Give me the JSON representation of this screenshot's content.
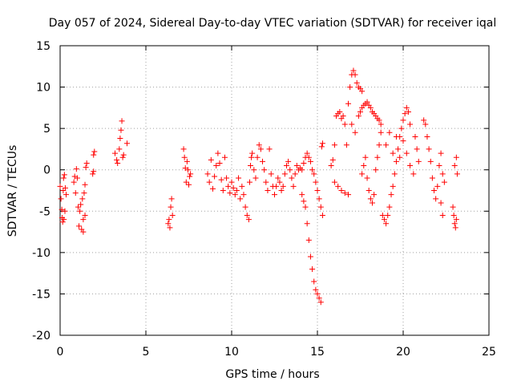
{
  "chart_data": {
    "type": "scatter",
    "title": "Day 057 of 2024, Sidereal Day-to-day VTEC variation (SDTVAR) for receiver iqal",
    "xlabel": "GPS time / hours",
    "ylabel": "SDTVAR / TECUs",
    "xlim": [
      0,
      25
    ],
    "ylim": [
      -20,
      15
    ],
    "x_ticks": [
      0,
      5,
      10,
      15,
      20,
      25
    ],
    "x_tick_labels": [
      "0",
      "5",
      "10",
      "15",
      "20",
      "25"
    ],
    "y_ticks": [
      -20,
      -15,
      -10,
      -5,
      0,
      5,
      10,
      15
    ],
    "y_tick_labels": [
      "-20",
      "-15",
      "-10",
      "-5",
      "0",
      "5",
      "10",
      "15"
    ],
    "grid": true,
    "marker": "+",
    "marker_color": "#ff0000",
    "series": [
      {
        "name": "SDTVAR",
        "points": [
          [
            0.0,
            -2.0
          ],
          [
            0.05,
            -3.5
          ],
          [
            0.1,
            -4.8
          ],
          [
            0.12,
            -5.8
          ],
          [
            0.15,
            -6.3
          ],
          [
            0.18,
            -2.5
          ],
          [
            0.2,
            -1.0
          ],
          [
            0.25,
            -0.6
          ],
          [
            0.3,
            -2.2
          ],
          [
            0.35,
            -3.0
          ],
          [
            0.28,
            -5.0
          ],
          [
            0.22,
            -6.0
          ],
          [
            0.8,
            -1.5
          ],
          [
            0.85,
            -0.8
          ],
          [
            0.9,
            -2.8
          ],
          [
            0.95,
            0.1
          ],
          [
            1.0,
            -1.0
          ],
          [
            1.05,
            -4.5
          ],
          [
            1.1,
            -6.8
          ],
          [
            1.15,
            -5.0
          ],
          [
            1.2,
            -4.2
          ],
          [
            1.25,
            -7.2
          ],
          [
            1.3,
            -3.5
          ],
          [
            1.35,
            -6.0
          ],
          [
            1.4,
            -2.8
          ],
          [
            1.45,
            -1.8
          ],
          [
            1.5,
            0.3
          ],
          [
            1.55,
            0.8
          ],
          [
            1.45,
            -5.5
          ],
          [
            1.35,
            -7.5
          ],
          [
            1.9,
            -0.5
          ],
          [
            1.95,
            -0.2
          ],
          [
            2.0,
            2.2
          ],
          [
            1.95,
            1.8
          ],
          [
            3.2,
            2.0
          ],
          [
            3.3,
            1.2
          ],
          [
            3.35,
            0.8
          ],
          [
            3.45,
            2.5
          ],
          [
            3.5,
            3.8
          ],
          [
            3.55,
            4.8
          ],
          [
            3.6,
            5.9
          ],
          [
            3.65,
            1.5
          ],
          [
            3.7,
            1.8
          ],
          [
            3.9,
            3.2
          ],
          [
            6.3,
            -6.5
          ],
          [
            6.35,
            -6.0
          ],
          [
            6.4,
            -7.0
          ],
          [
            6.45,
            -4.5
          ],
          [
            6.5,
            -3.5
          ],
          [
            6.55,
            -5.5
          ],
          [
            7.2,
            2.5
          ],
          [
            7.25,
            1.5
          ],
          [
            7.3,
            0.2
          ],
          [
            7.35,
            -1.5
          ],
          [
            7.4,
            1.0
          ],
          [
            7.45,
            0.0
          ],
          [
            7.5,
            -1.8
          ],
          [
            7.55,
            -0.8
          ],
          [
            7.6,
            -0.5
          ],
          [
            8.6,
            -0.5
          ],
          [
            8.7,
            -1.5
          ],
          [
            8.8,
            1.2
          ],
          [
            8.9,
            -2.3
          ],
          [
            9.0,
            -0.8
          ],
          [
            9.1,
            0.5
          ],
          [
            9.2,
            2.0
          ],
          [
            9.3,
            0.8
          ],
          [
            9.4,
            -1.2
          ],
          [
            9.5,
            -2.5
          ],
          [
            9.6,
            1.5
          ],
          [
            9.7,
            -1.0
          ],
          [
            9.8,
            -2.0
          ],
          [
            9.9,
            -2.8
          ],
          [
            10.0,
            -1.5
          ],
          [
            10.1,
            -2.2
          ],
          [
            10.2,
            -3.0
          ],
          [
            10.3,
            -2.5
          ],
          [
            10.4,
            -1.0
          ],
          [
            10.5,
            -3.5
          ],
          [
            10.6,
            -2.0
          ],
          [
            10.7,
            -3.0
          ],
          [
            10.8,
            -4.5
          ],
          [
            10.9,
            -5.5
          ],
          [
            11.0,
            -6.0
          ],
          [
            11.05,
            -1.5
          ],
          [
            11.1,
            0.5
          ],
          [
            11.15,
            1.5
          ],
          [
            11.2,
            2.0
          ],
          [
            11.3,
            0.0
          ],
          [
            11.4,
            -1.0
          ],
          [
            11.5,
            1.5
          ],
          [
            11.6,
            3.0
          ],
          [
            11.7,
            2.5
          ],
          [
            11.8,
            1.0
          ],
          [
            11.9,
            0.0
          ],
          [
            12.0,
            -1.5
          ],
          [
            12.1,
            -2.5
          ],
          [
            12.2,
            2.5
          ],
          [
            12.3,
            -0.5
          ],
          [
            12.4,
            -2.0
          ],
          [
            12.5,
            -3.0
          ],
          [
            12.6,
            -2.0
          ],
          [
            12.7,
            -1.0
          ],
          [
            12.8,
            -1.5
          ],
          [
            12.9,
            -2.5
          ],
          [
            13.0,
            -2.0
          ],
          [
            13.1,
            -0.5
          ],
          [
            13.2,
            0.5
          ],
          [
            13.3,
            1.0
          ],
          [
            13.4,
            0.0
          ],
          [
            13.5,
            -1.0
          ],
          [
            13.6,
            -2.0
          ],
          [
            13.7,
            -0.5
          ],
          [
            13.8,
            0.5
          ],
          [
            13.9,
            0.0
          ],
          [
            14.0,
            0.2
          ],
          [
            14.1,
            0.0
          ],
          [
            14.2,
            0.8
          ],
          [
            14.3,
            1.5
          ],
          [
            14.4,
            2.0
          ],
          [
            14.5,
            1.5
          ],
          [
            14.6,
            1.0
          ],
          [
            14.7,
            0.0
          ],
          [
            14.8,
            -0.5
          ],
          [
            14.9,
            -1.5
          ],
          [
            15.0,
            -2.5
          ],
          [
            15.1,
            -3.5
          ],
          [
            15.2,
            -4.5
          ],
          [
            15.3,
            -5.5
          ],
          [
            15.25,
            2.8
          ],
          [
            15.3,
            3.2
          ],
          [
            14.1,
            -3.0
          ],
          [
            14.2,
            -3.8
          ],
          [
            14.3,
            -4.5
          ],
          [
            14.4,
            -6.5
          ],
          [
            14.5,
            -8.5
          ],
          [
            14.6,
            -10.5
          ],
          [
            14.7,
            -12.0
          ],
          [
            14.8,
            -13.5
          ],
          [
            14.9,
            -14.5
          ],
          [
            15.0,
            -15.0
          ],
          [
            15.1,
            -15.5
          ],
          [
            15.2,
            -16.0
          ],
          [
            15.8,
            0.5
          ],
          [
            15.9,
            1.2
          ],
          [
            16.0,
            3.0
          ],
          [
            16.1,
            6.5
          ],
          [
            16.2,
            6.8
          ],
          [
            16.3,
            7.0
          ],
          [
            16.4,
            6.2
          ],
          [
            16.5,
            6.5
          ],
          [
            16.6,
            5.5
          ],
          [
            16.0,
            -1.5
          ],
          [
            16.2,
            -2.0
          ],
          [
            16.4,
            -2.5
          ],
          [
            16.6,
            -2.8
          ],
          [
            16.8,
            -3.0
          ],
          [
            16.7,
            3.0
          ],
          [
            16.8,
            8.0
          ],
          [
            16.9,
            10.0
          ],
          [
            17.0,
            11.5
          ],
          [
            17.1,
            12.0
          ],
          [
            17.2,
            11.5
          ],
          [
            17.3,
            10.5
          ],
          [
            17.4,
            10.0
          ],
          [
            17.5,
            9.8
          ],
          [
            17.6,
            9.5
          ],
          [
            17.0,
            5.5
          ],
          [
            17.2,
            4.5
          ],
          [
            17.4,
            6.5
          ],
          [
            17.5,
            7.0
          ],
          [
            17.6,
            7.5
          ],
          [
            17.7,
            7.8
          ],
          [
            17.8,
            8.0
          ],
          [
            17.9,
            8.2
          ],
          [
            18.0,
            7.8
          ],
          [
            18.1,
            7.5
          ],
          [
            18.2,
            7.0
          ],
          [
            18.3,
            6.8
          ],
          [
            18.4,
            6.5
          ],
          [
            18.5,
            6.2
          ],
          [
            18.6,
            6.0
          ],
          [
            18.7,
            5.5
          ],
          [
            17.6,
            -0.5
          ],
          [
            17.7,
            0.5
          ],
          [
            17.8,
            1.5
          ],
          [
            17.9,
            -1.0
          ],
          [
            18.0,
            -2.5
          ],
          [
            18.1,
            -3.5
          ],
          [
            18.2,
            -4.0
          ],
          [
            18.3,
            -3.0
          ],
          [
            18.4,
            0.0
          ],
          [
            18.5,
            1.5
          ],
          [
            18.6,
            3.0
          ],
          [
            18.7,
            4.5
          ],
          [
            18.8,
            -5.5
          ],
          [
            18.9,
            -6.0
          ],
          [
            19.0,
            -6.5
          ],
          [
            19.1,
            -5.5
          ],
          [
            19.2,
            -4.5
          ],
          [
            19.3,
            -3.0
          ],
          [
            19.4,
            -2.0
          ],
          [
            19.5,
            -0.5
          ],
          [
            19.6,
            1.0
          ],
          [
            19.7,
            2.5
          ],
          [
            19.8,
            4.0
          ],
          [
            19.9,
            5.0
          ],
          [
            20.0,
            6.0
          ],
          [
            20.1,
            6.8
          ],
          [
            20.2,
            7.5
          ],
          [
            20.3,
            7.0
          ],
          [
            20.4,
            5.5
          ],
          [
            19.0,
            3.0
          ],
          [
            19.2,
            4.5
          ],
          [
            19.4,
            2.0
          ],
          [
            19.6,
            4.0
          ],
          [
            19.8,
            1.5
          ],
          [
            20.0,
            3.5
          ],
          [
            20.2,
            2.0
          ],
          [
            20.4,
            0.5
          ],
          [
            20.6,
            -0.5
          ],
          [
            20.7,
            4.0
          ],
          [
            20.8,
            2.5
          ],
          [
            20.9,
            1.0
          ],
          [
            21.2,
            6.0
          ],
          [
            21.3,
            5.5
          ],
          [
            21.4,
            4.0
          ],
          [
            21.5,
            2.5
          ],
          [
            21.6,
            1.0
          ],
          [
            21.7,
            -1.0
          ],
          [
            21.8,
            -2.5
          ],
          [
            21.9,
            -3.5
          ],
          [
            22.0,
            -2.0
          ],
          [
            22.1,
            0.5
          ],
          [
            22.2,
            2.0
          ],
          [
            22.3,
            -0.5
          ],
          [
            22.4,
            -1.5
          ],
          [
            22.2,
            -4.0
          ],
          [
            22.3,
            -5.5
          ],
          [
            22.9,
            -4.5
          ],
          [
            22.95,
            -5.5
          ],
          [
            23.0,
            -6.5
          ],
          [
            23.05,
            -7.0
          ],
          [
            23.1,
            -6.0
          ],
          [
            23.0,
            0.5
          ],
          [
            23.1,
            1.5
          ],
          [
            23.15,
            -0.5
          ]
        ]
      }
    ]
  }
}
